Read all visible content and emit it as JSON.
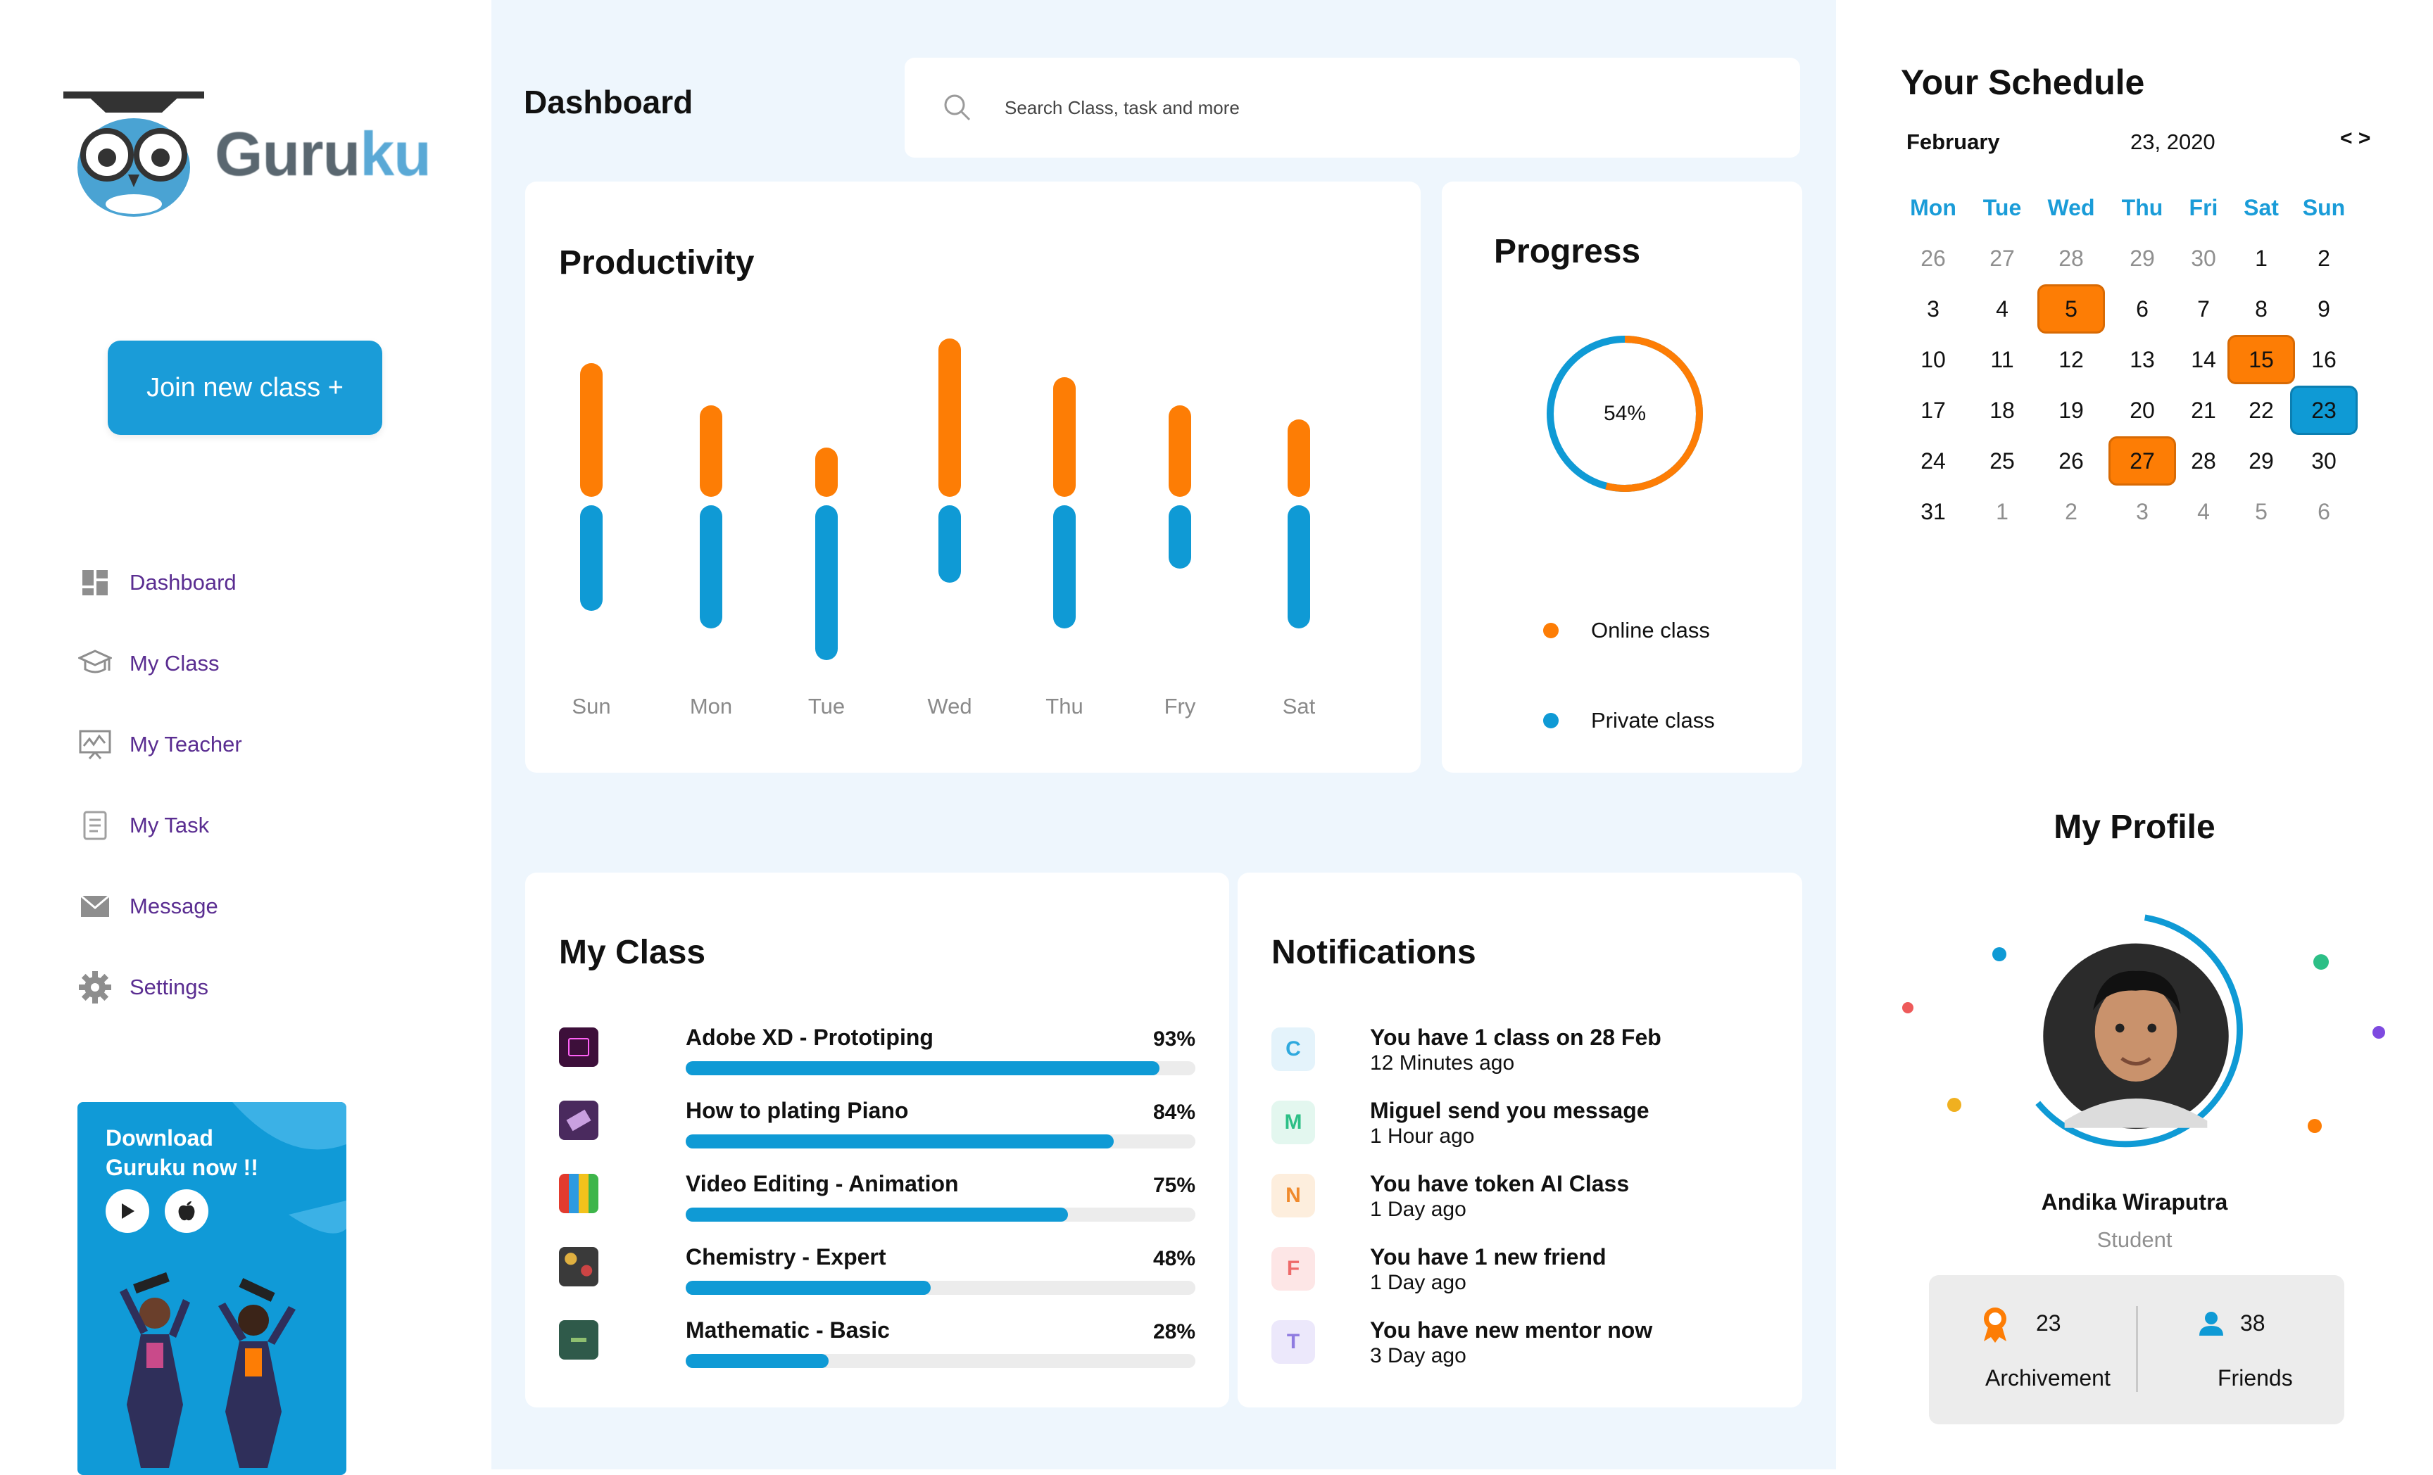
{
  "app": {
    "logo_text_main": "Guru",
    "logo_text_accent": "ku",
    "join_label": "Join new class +"
  },
  "sidebar": {
    "items": [
      {
        "label": "Dashboard",
        "icon": "dashboard-icon"
      },
      {
        "label": "My Class",
        "icon": "graduation-cap-icon"
      },
      {
        "label": "My Teacher",
        "icon": "presentation-board-icon"
      },
      {
        "label": "My Task",
        "icon": "document-icon"
      },
      {
        "label": "Message",
        "icon": "envelope-icon"
      },
      {
        "label": "Settings",
        "icon": "gear-icon"
      }
    ]
  },
  "promo": {
    "line1": "Download",
    "line2": "Guruku now !!",
    "play_icon": "play-store-icon",
    "apple_icon": "apple-icon"
  },
  "header": {
    "title": "Dashboard",
    "search_placeholder": "Search Class, task and more"
  },
  "productivity": {
    "title": "Productivity",
    "chart_data": {
      "type": "bar",
      "categories": [
        "Sun",
        "Mon",
        "Tue",
        "Wed",
        "Thu",
        "Fry",
        "Sat"
      ],
      "series": [
        {
          "values": [
            38,
            26,
            14,
            45,
            34,
            26,
            22
          ]
        },
        {
          "values": [
            30,
            35,
            44,
            22,
            35,
            18,
            35
          ]
        }
      ],
      "colors": [
        "#fd7d05",
        "#0f9ad5"
      ]
    }
  },
  "progress": {
    "title": "Progress",
    "percent_label": "54%",
    "chart_data": {
      "type": "pie",
      "labels": [
        "Online class",
        "Private class"
      ],
      "values": [
        54,
        46
      ],
      "colors": [
        "#fd7d05",
        "#0f9ad5"
      ]
    },
    "legend": [
      {
        "label": "Online class",
        "color": "#fd7d05"
      },
      {
        "label": "Private class",
        "color": "#0f9ad5"
      }
    ]
  },
  "my_class": {
    "title": "My Class",
    "items": [
      {
        "name": "Adobe XD - Prototiping",
        "pct": "93%",
        "progress": 0.93
      },
      {
        "name": "How to plating Piano",
        "pct": "84%",
        "progress": 0.84
      },
      {
        "name": "Video Editing - Animation",
        "pct": "75%",
        "progress": 0.75
      },
      {
        "name": "Chemistry - Expert",
        "pct": "48%",
        "progress": 0.48
      },
      {
        "name": "Mathematic - Basic",
        "pct": "28%",
        "progress": 0.28
      }
    ]
  },
  "notifications": {
    "title": "Notifications",
    "items": [
      {
        "letter": "C",
        "text": "You have 1 class on 28 Feb",
        "time": "12 Minutes ago",
        "color": "#2fa9de",
        "bg": "#e4f3fb"
      },
      {
        "letter": "M",
        "text": "Miguel send you message",
        "time": "1 Hour ago",
        "color": "#2cbf86",
        "bg": "#e3f7ef"
      },
      {
        "letter": "N",
        "text": "You have token AI Class",
        "time": "1 Day ago",
        "color": "#f08a2c",
        "bg": "#fdeedd"
      },
      {
        "letter": "F",
        "text": "You have 1 new friend",
        "time": "1 Day ago",
        "color": "#ee6a6a",
        "bg": "#fde6e6"
      },
      {
        "letter": "T",
        "text": "You have new mentor now",
        "time": "3 Day ago",
        "color": "#8f7be0",
        "bg": "#ece8fb"
      }
    ]
  },
  "schedule": {
    "title": "Your Schedule",
    "month": "February",
    "date": "23, 2020",
    "nav": "< >",
    "weekdays": [
      "Mon",
      "Tue",
      "Wed",
      "Thu",
      "Fri",
      "Sat",
      "Sun"
    ],
    "weeks": [
      [
        "26",
        "27",
        "28",
        "29",
        "30",
        "1",
        "2"
      ],
      [
        "3",
        "4",
        "5",
        "6",
        "7",
        "8",
        "9"
      ],
      [
        "10",
        "11",
        "12",
        "13",
        "14",
        "15",
        "16"
      ],
      [
        "17",
        "18",
        "19",
        "20",
        "21",
        "22",
        "23"
      ],
      [
        "24",
        "25",
        "26",
        "27",
        "28",
        "29",
        "30"
      ],
      [
        "31",
        "1",
        "2",
        "3",
        "4",
        "5",
        "6"
      ]
    ],
    "highlight_orange": [
      "5",
      "15",
      "27"
    ],
    "highlight_blue": [
      "23"
    ]
  },
  "profile": {
    "title": "My Profile",
    "name": "Andika Wiraputra",
    "role": "Student",
    "achievements_count": "23",
    "achievements_label": "Archivement",
    "friends_count": "38",
    "friends_label": "Friends"
  }
}
